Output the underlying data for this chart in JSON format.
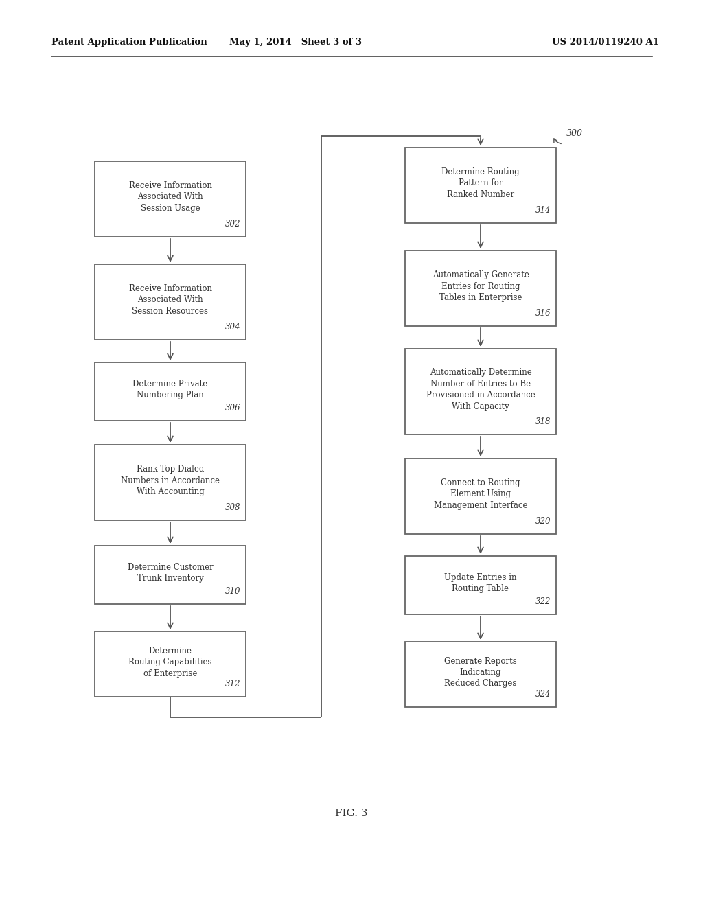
{
  "header_left": "Patent Application Publication",
  "header_middle": "May 1, 2014   Sheet 3 of 3",
  "header_right": "US 2014/0119240 A1",
  "figure_label": "FIG. 3",
  "ref_number": "300",
  "bg_color": "#ffffff",
  "box_color": "#ffffff",
  "box_edge_color": "#666666",
  "text_color": "#333333",
  "arrow_color": "#555555",
  "left_boxes": [
    {
      "text": "Receive Information\nAssociated With\nSession Usage",
      "ref": "302"
    },
    {
      "text": "Receive Information\nAssociated With\nSession Resources",
      "ref": "304"
    },
    {
      "text": "Determine Private\nNumbering Plan",
      "ref": "306"
    },
    {
      "text": "Rank Top Dialed\nNumbers in Accordance\nWith Accounting",
      "ref": "308"
    },
    {
      "text": "Determine Customer\nTrunk Inventory",
      "ref": "310"
    },
    {
      "text": "Determine\nRouting Capabilities\nof Enterprise",
      "ref": "312"
    }
  ],
  "right_boxes": [
    {
      "text": "Determine Routing\nPattern for\nRanked Number",
      "ref": "314"
    },
    {
      "text": "Automatically Generate\nEntries for Routing\nTables in Enterprise",
      "ref": "316"
    },
    {
      "text": "Automatically Determine\nNumber of Entries to Be\nProvisioned in Accordance\nWith Capacity",
      "ref": "318"
    },
    {
      "text": "Connect to Routing\nElement Using\nManagement Interface",
      "ref": "320"
    },
    {
      "text": "Update Entries in\nRouting Table",
      "ref": "322"
    },
    {
      "text": "Generate Reports\nIndicating\nReduced Charges",
      "ref": "324"
    }
  ]
}
